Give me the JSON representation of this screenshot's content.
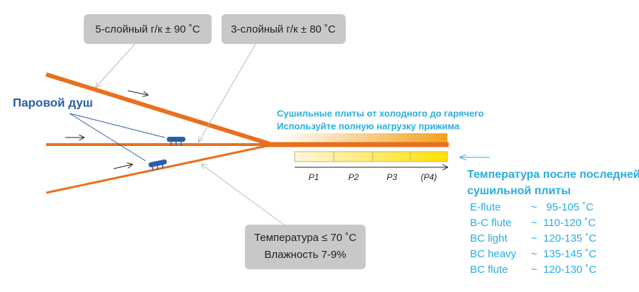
{
  "labels": {
    "five_layer": "5-слойный г/к ± 90 ˚C",
    "three_layer": "3-слойный г/к ± 80 ˚C",
    "steam": "Паровой душ",
    "plates_line1": "Сушильные плиты от холодного до гарячего",
    "plates_line2": "Используйте полную нагрузку прижима",
    "conditions_line1": "Температура ≤ 70 ˚C",
    "conditions_line2": "Влажность 7-9%"
  },
  "plates": [
    "P1",
    "P2",
    "P3",
    "(P4)"
  ],
  "table": {
    "title_line1": "Температура после последней",
    "title_line2": "сушильной плиты",
    "rows": [
      [
        "E-flute",
        "~   95-105 ˚C"
      ],
      [
        "B-C flute",
        "~  110-120 ˚C"
      ],
      [
        "BC light",
        "~  120-135 ˚C"
      ],
      [
        "BC heavy",
        "~  135-145 ˚C"
      ],
      [
        "BC flute",
        "~  120-130 ˚C"
      ]
    ]
  }
}
